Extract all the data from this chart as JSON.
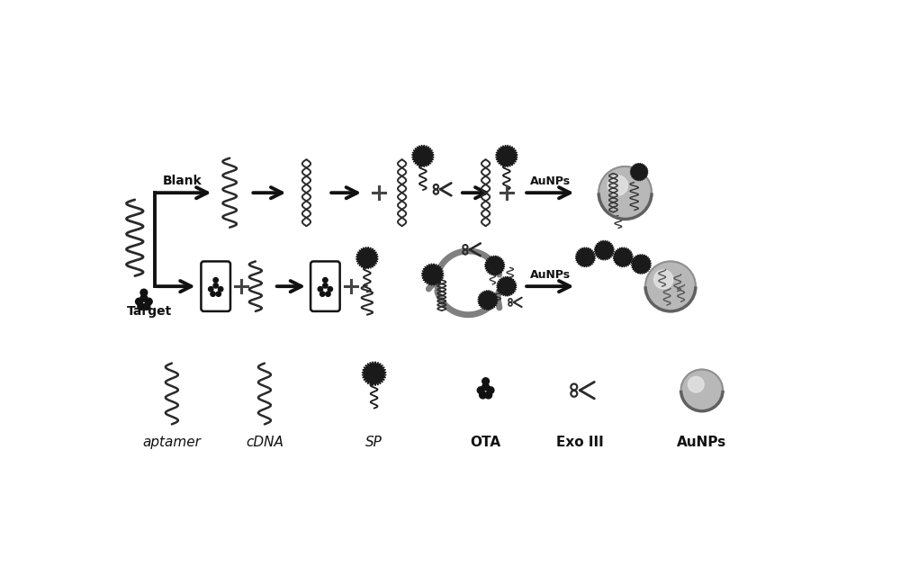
{
  "background_color": "#ffffff",
  "legend_labels": [
    "aptamer",
    "cDNA",
    "SP",
    "OTA",
    "Exo III",
    "AuNPs"
  ],
  "blank_label": "Blank",
  "target_label": "Target",
  "aunps_label": "AuNPs",
  "wave_color": "#2a2a2a",
  "dna_color": "#2a2a2a",
  "arrow_color": "#111111",
  "gray_arrow_color": "#888888",
  "plus_color": "#444444",
  "scissors_color": "#2a2a2a",
  "spike_color": "#1a1a1a",
  "sphere_color": "#c0c0c0",
  "sphere_highlight": "#e0e0e0",
  "sphere_edge": "#808080"
}
